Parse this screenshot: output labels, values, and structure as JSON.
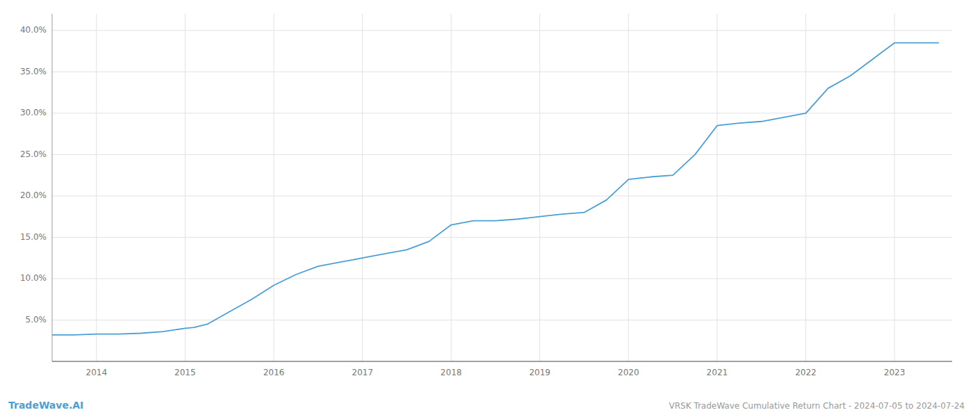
{
  "chart_data": {
    "type": "line",
    "title": "VRSK TradeWave Cumulative Return Chart - 2024-07-05 to 2024-07-24",
    "annotations": [
      "TradeWave.AI"
    ],
    "x": [
      2013.5,
      2013.75,
      2014.0,
      2014.25,
      2014.5,
      2014.75,
      2015.0,
      2015.1,
      2015.25,
      2015.5,
      2015.75,
      2016.0,
      2016.25,
      2016.5,
      2016.75,
      2017.0,
      2017.25,
      2017.5,
      2017.75,
      2018.0,
      2018.25,
      2018.5,
      2018.75,
      2019.0,
      2019.25,
      2019.5,
      2019.75,
      2020.0,
      2020.25,
      2020.5,
      2020.75,
      2021.0,
      2021.25,
      2021.5,
      2021.75,
      2022.0,
      2022.25,
      2022.5,
      2022.75,
      2023.0,
      2023.25,
      2023.5
    ],
    "values": [
      3.2,
      3.2,
      3.3,
      3.3,
      3.4,
      3.6,
      4.0,
      4.1,
      4.5,
      6.0,
      7.5,
      9.2,
      10.5,
      11.5,
      12.0,
      12.5,
      13.0,
      13.5,
      14.5,
      16.5,
      17.0,
      17.0,
      17.2,
      17.5,
      17.8,
      18.0,
      19.5,
      22.0,
      22.3,
      22.5,
      25.0,
      28.5,
      28.8,
      29.0,
      29.5,
      30.0,
      33.0,
      34.5,
      36.5,
      38.5,
      38.5,
      38.5
    ],
    "color": "#4a9fd4",
    "xlim": [
      2013.5,
      2023.65
    ],
    "ylim": [
      0,
      42
    ],
    "xticks": [
      2014,
      2015,
      2016,
      2017,
      2018,
      2019,
      2020,
      2021,
      2022,
      2023
    ],
    "yticks": [
      {
        "value": 5.0,
        "label": "5.0%"
      },
      {
        "value": 10.0,
        "label": "10.0%"
      },
      {
        "value": 15.0,
        "label": "15.0%"
      },
      {
        "value": 20.0,
        "label": "20.0%"
      },
      {
        "value": 25.0,
        "label": "25.0%"
      },
      {
        "value": 30.0,
        "label": "30.0%"
      },
      {
        "value": 35.0,
        "label": "35.0%"
      },
      {
        "value": 40.0,
        "label": "40.0%"
      }
    ],
    "grid": true
  }
}
